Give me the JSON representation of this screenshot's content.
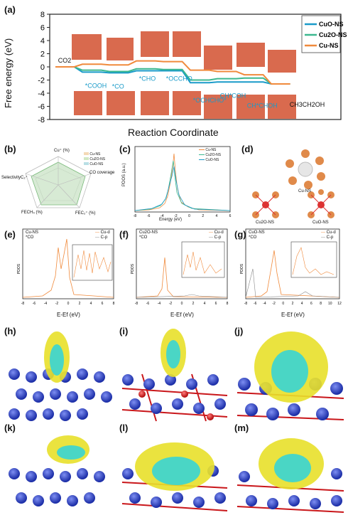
{
  "panel_a": {
    "label": "(a)",
    "ylabel": "Free energy (eV)",
    "xlabel": "Reaction Coordinate",
    "yticks": [
      "8",
      "6",
      "4",
      "2",
      "0",
      "-2",
      "-4",
      "-6",
      "-8"
    ],
    "legend": [
      {
        "name": "CuO-NS",
        "color": "#1a9bc9"
      },
      {
        "name": "Cu2O-NS",
        "color": "#3cb88f"
      },
      {
        "name": "Cu-NS",
        "color": "#f08a3c"
      }
    ],
    "species": [
      "CO2",
      "*COOH",
      "*CO",
      "*CHO",
      "*OCCHO",
      "*OCHCHO*",
      "CH*COH",
      "CH*CHOH",
      "CH3CH2OH"
    ]
  },
  "chart_data": {
    "type": "line",
    "title": "",
    "xlabel": "Reaction Coordinate",
    "ylabel": "Free energy (eV)",
    "ylim": [
      -8,
      8
    ],
    "categories": [
      "CO2",
      "*COOH",
      "*CO",
      "*CHO",
      "*OCCHO",
      "*OCHCHO*",
      "CH*COH",
      "CH*CHOH",
      "CH3CH2OH"
    ],
    "series": [
      {
        "name": "CuO-NS",
        "color": "#1a9bc9",
        "values": [
          0.0,
          -0.8,
          -0.9,
          -0.6,
          -0.6,
          -2.4,
          -2.3,
          -2.3,
          -2.6
        ]
      },
      {
        "name": "Cu2O-NS",
        "color": "#3cb88f",
        "values": [
          0.0,
          -0.5,
          -0.7,
          -0.3,
          -0.4,
          -2.0,
          -1.8,
          -1.7,
          -2.6
        ]
      },
      {
        "name": "Cu-NS",
        "color": "#f08a3c",
        "values": [
          0.0,
          0.4,
          0.3,
          0.9,
          0.8,
          -0.5,
          -0.7,
          -1.2,
          -2.6
        ]
      }
    ]
  },
  "panel_b": {
    "label": "(b)",
    "axes": [
      "Cu⁺ (%)",
      "CO coverage",
      "FEC₂⁺ (%)",
      "FECH₄ (%)",
      "SelectivityC₂⁺"
    ],
    "legend": [
      "Cu-NS",
      "Cu2O-NS",
      "CuO-NS"
    ]
  },
  "panel_c": {
    "label": "(c)",
    "ylabel": "PDOS (a.u.)",
    "xlabel": "Energy (eV)",
    "xticks": [
      "-8",
      "-6",
      "-4",
      "-2",
      "0",
      "2",
      "4",
      "6"
    ],
    "legend": [
      "Cu-NS",
      "Cu2O-NS",
      "CuO-NS"
    ]
  },
  "panel_d": {
    "label": "(d)",
    "names": [
      "Cu-NS",
      "Cu2O-NS",
      "CuO-NS"
    ]
  },
  "panel_efg": {
    "xlabel": "E-Ef (eV)",
    "ylabel": "PDOS",
    "e": {
      "label": "(e)",
      "title1": "Cu-NS",
      "title2": "*CO",
      "xticks": [
        "-8",
        "-6",
        "-4",
        "-2",
        "0",
        "2",
        "4",
        "6",
        "8"
      ]
    },
    "f": {
      "label": "(f)",
      "title1": "Cu2O-NS",
      "title2": "*CO",
      "xticks": [
        "-8",
        "-6",
        "-4",
        "-2",
        "0",
        "2",
        "4",
        "6",
        "8"
      ]
    },
    "g": {
      "label": "(g)",
      "title1": "CuO-NS",
      "title2": "*CO",
      "xticks": [
        "-8",
        "-6",
        "-4",
        "-2",
        "0",
        "2",
        "4",
        "6",
        "8",
        "10",
        "12"
      ]
    },
    "legend": [
      "Cu-d",
      "C-p"
    ]
  },
  "panel_labels": {
    "h": "(h)",
    "i": "(i)",
    "j": "(j)",
    "k": "(k)",
    "l": "(l)",
    "m": "(m)"
  }
}
